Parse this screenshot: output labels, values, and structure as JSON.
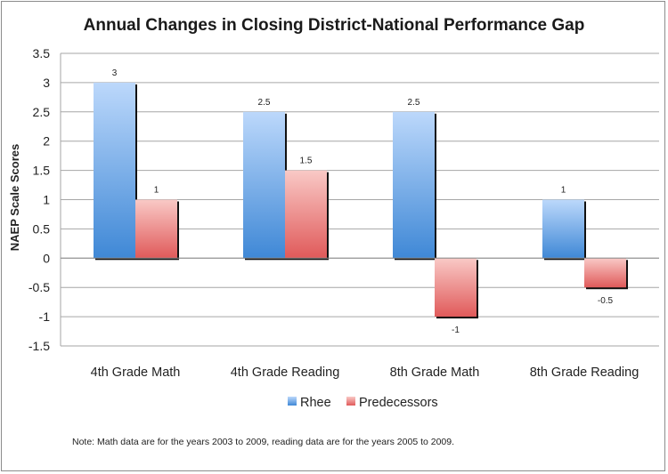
{
  "chart_data": {
    "type": "bar",
    "title": "Annual Changes in Closing District-National Performance Gap",
    "ylabel": "NAEP Scale Scores",
    "xlabel": "",
    "categories": [
      "4th Grade Math",
      "4th Grade Reading",
      "8th Grade Math",
      "8th Grade Reading"
    ],
    "series": [
      {
        "name": "Rhee",
        "values": [
          3,
          2.5,
          2.5,
          1
        ],
        "color": "#5b9bd5"
      },
      {
        "name": "Predecessors",
        "values": [
          1,
          1.5,
          -1,
          -0.5
        ],
        "color": "#e46c6c"
      }
    ],
    "data_labels": [
      [
        "3",
        "2.5",
        "2.5",
        "1"
      ],
      [
        "1",
        "1.5",
        "-1",
        "-0.5"
      ]
    ],
    "ylim": [
      -1.5,
      3.5
    ],
    "yticks": [
      "3.5",
      "3",
      "2.5",
      "2",
      "1.5",
      "1",
      "0.5",
      "0",
      "-0.5",
      "-1",
      "-1.5"
    ],
    "grid": true,
    "legend_position": "bottom",
    "note": "Note: Math data are for the years 2003 to 2009, reading data are for the years 2005 to 2009."
  }
}
